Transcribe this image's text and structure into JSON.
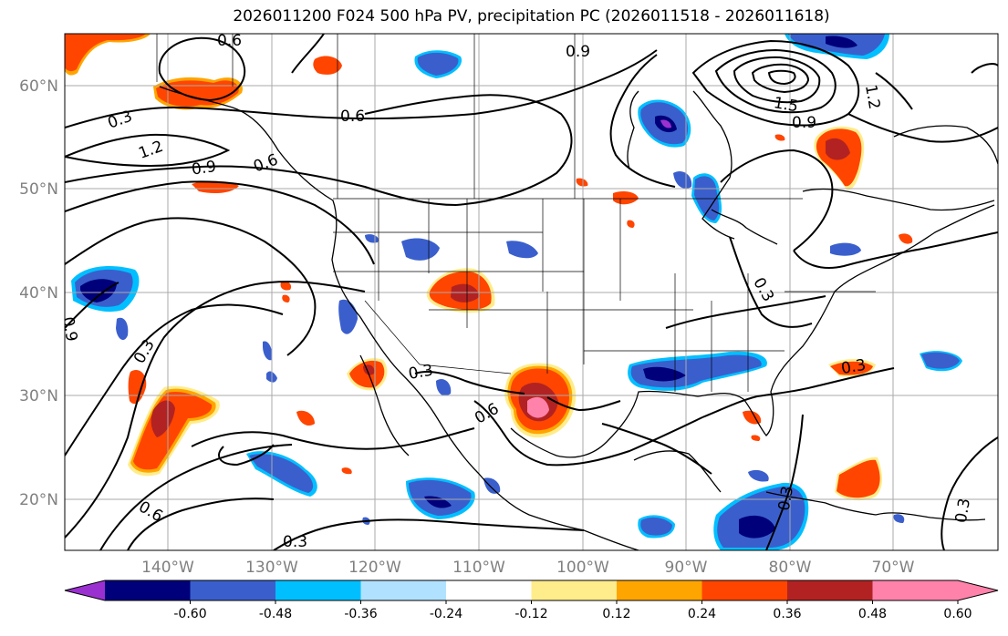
{
  "title": "2026011200 F024 500 hPa PV, precipitation PC (2026011518 - 2026011618)",
  "map": {
    "lat_labels": [
      "60°N",
      "50°N",
      "40°N",
      "30°N",
      "20°N"
    ],
    "lon_labels": [
      "140°W",
      "130°W",
      "120°W",
      "110°W",
      "100°W",
      "90°W",
      "80°W",
      "70°W"
    ],
    "contour_labels": [
      "0.6",
      "0.9",
      "0.3",
      "1.2",
      "0.9",
      "0.6",
      "0.6",
      "1.5",
      "0.9",
      "1.2",
      "0.9",
      "0.3",
      "0.3",
      "0.6",
      "0.3",
      "0.6",
      "0.3",
      "0.3",
      "0.3",
      "0.3"
    ]
  },
  "colorbar": {
    "colors": [
      "#9b30d0",
      "#00007a",
      "#3a5fcd",
      "#00bfff",
      "#b0e2ff",
      "#ffffff",
      "#ffec8b",
      "#ffa500",
      "#ff4500",
      "#b22222",
      "#ff82ab",
      "#ff82ab"
    ],
    "ticks": [
      "-0.60",
      "-0.48",
      "-0.36",
      "-0.24",
      "-0.12",
      "0.12",
      "0.24",
      "0.36",
      "0.48",
      "0.60"
    ]
  }
}
